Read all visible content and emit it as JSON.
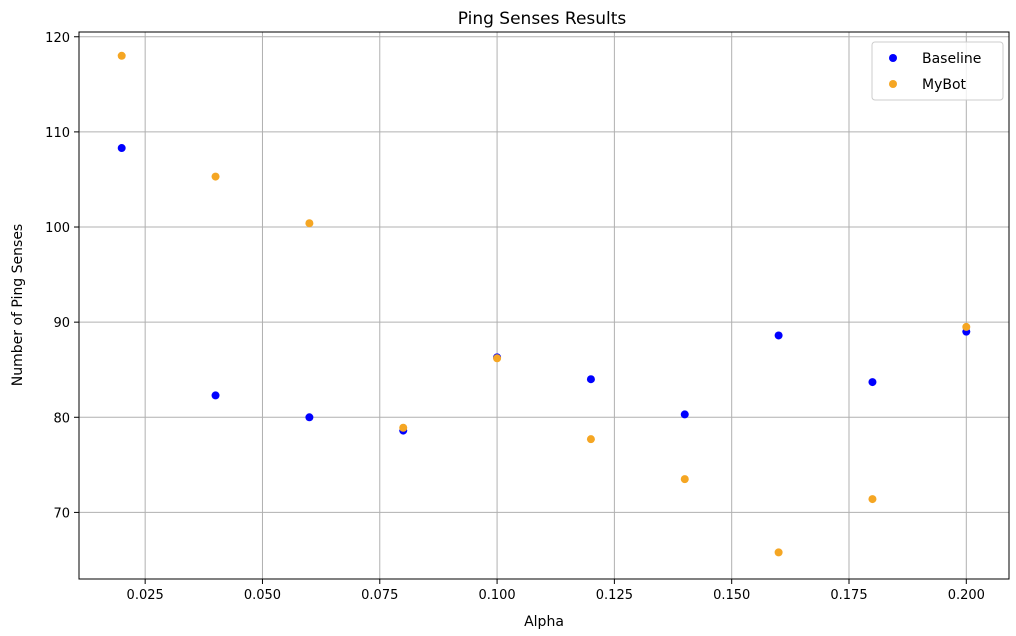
{
  "chart_data": {
    "type": "scatter",
    "title": "Ping Senses Results",
    "xlabel": "Alpha",
    "ylabel": "Number of Ping Senses",
    "xlim": [
      0.0109,
      0.2091
    ],
    "ylim": [
      63.0,
      120.5
    ],
    "xticks": [
      0.025,
      0.05,
      0.075,
      0.1,
      0.125,
      0.15,
      0.175,
      0.2
    ],
    "xtick_labels": [
      "0.025",
      "0.050",
      "0.075",
      "0.100",
      "0.125",
      "0.150",
      "0.175",
      "0.200"
    ],
    "yticks": [
      70,
      80,
      90,
      100,
      110,
      120
    ],
    "ytick_labels": [
      "70",
      "80",
      "90",
      "100",
      "110",
      "120"
    ],
    "grid": true,
    "legend_position": "top-right",
    "series": [
      {
        "name": "Baseline",
        "color": "#0000ff",
        "x": [
          0.02,
          0.04,
          0.06,
          0.08,
          0.1,
          0.12,
          0.14,
          0.16,
          0.18,
          0.2
        ],
        "y": [
          108.3,
          82.3,
          80.0,
          78.6,
          86.3,
          84.0,
          80.3,
          88.6,
          83.7,
          89.0
        ]
      },
      {
        "name": "MyBot",
        "color": "#f5a623",
        "x": [
          0.02,
          0.04,
          0.06,
          0.08,
          0.1,
          0.12,
          0.14,
          0.16,
          0.18,
          0.2
        ],
        "y": [
          118.0,
          105.3,
          100.4,
          78.9,
          86.2,
          77.7,
          73.5,
          65.8,
          71.4,
          89.5
        ]
      }
    ]
  }
}
